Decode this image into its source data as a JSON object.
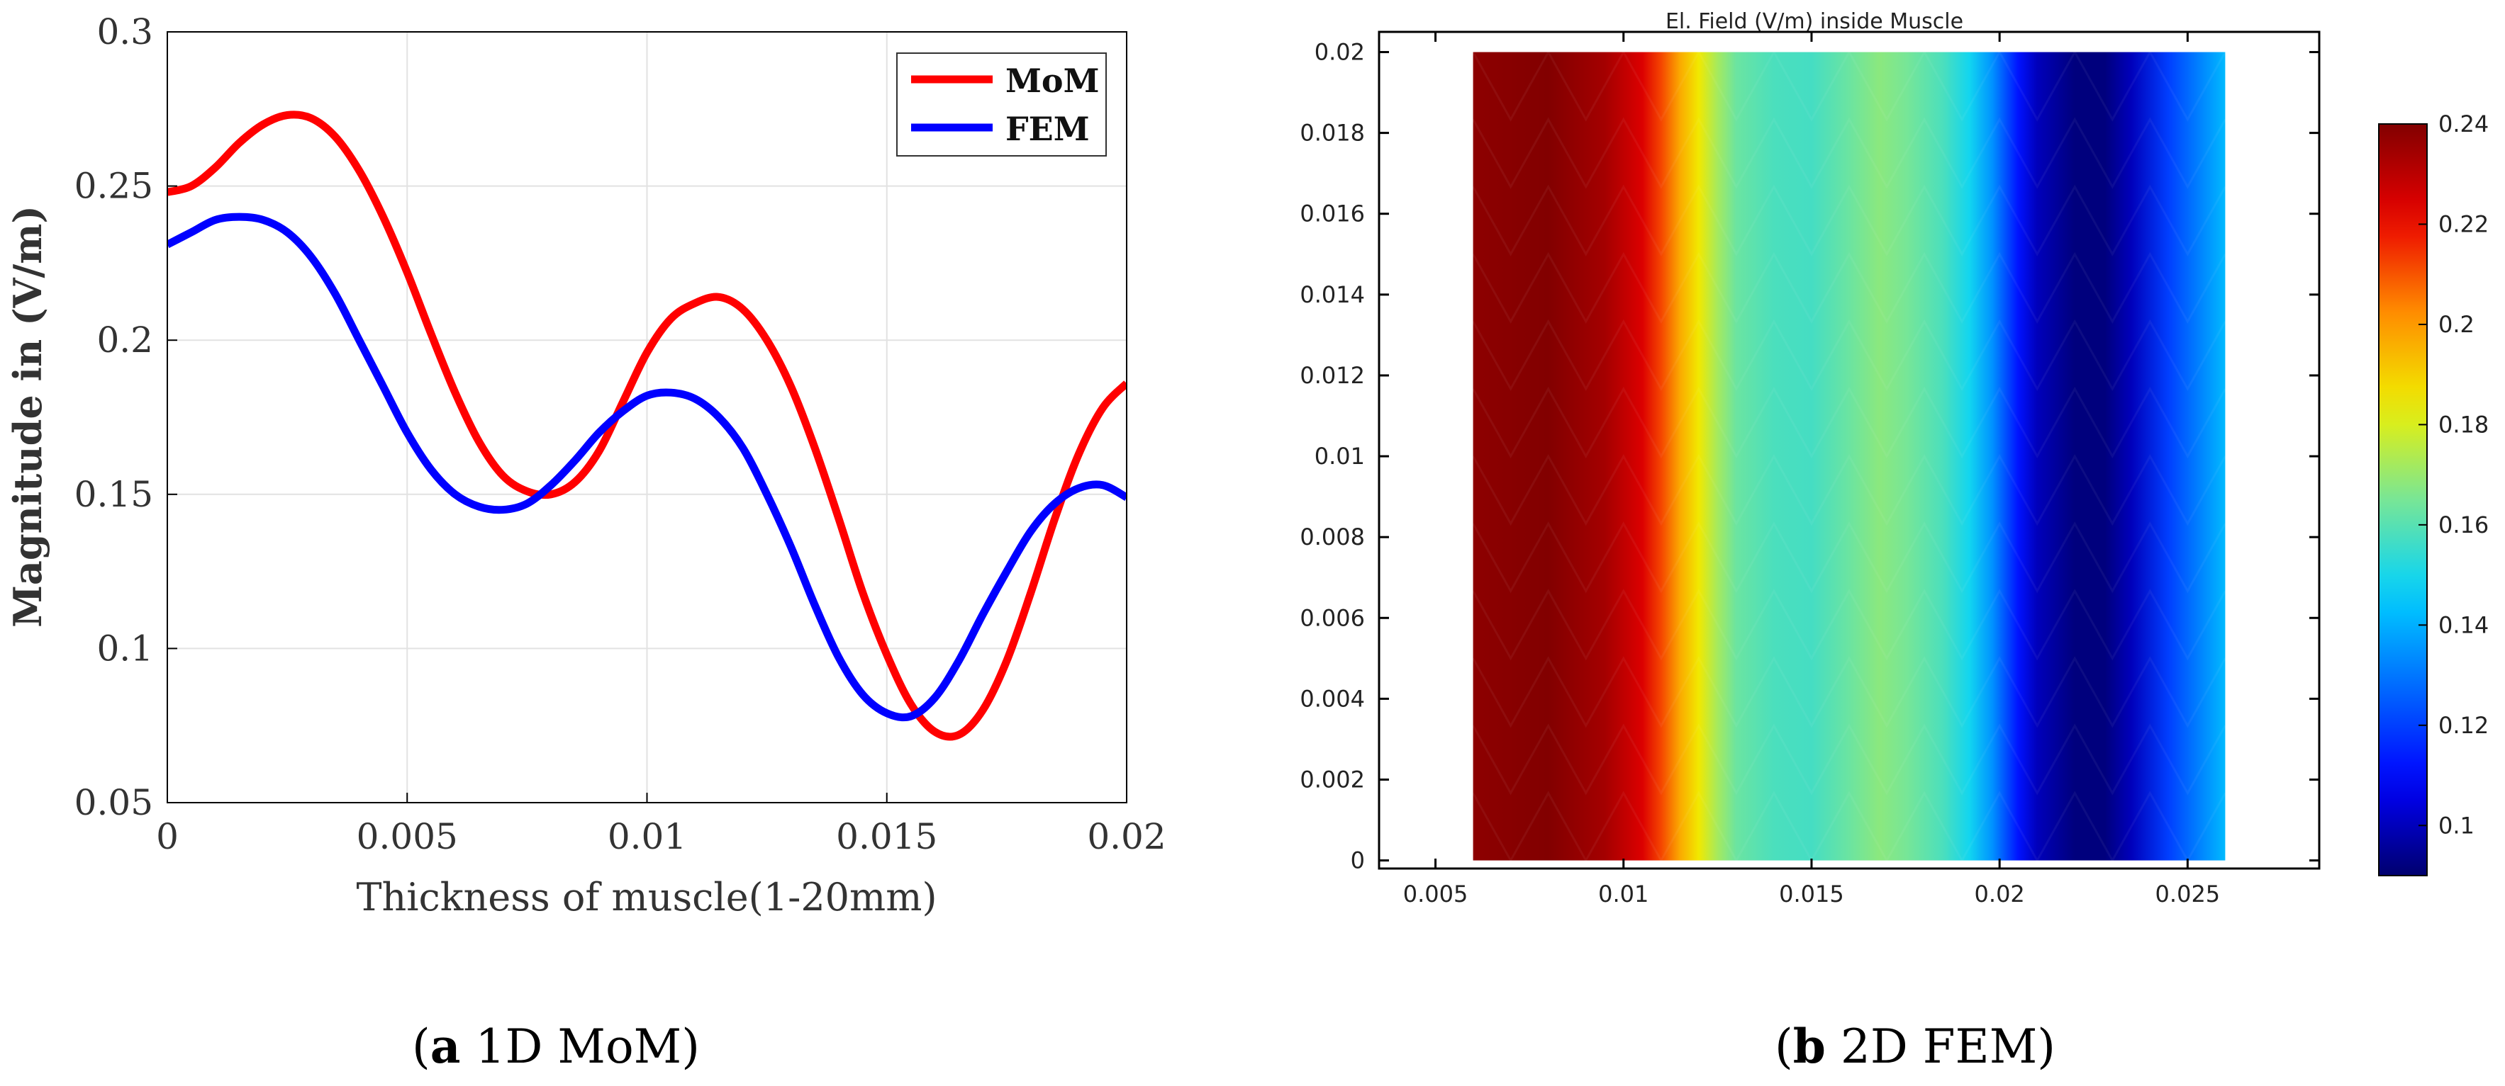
{
  "chart_data": [
    {
      "type": "line",
      "title": "",
      "xlabel": "Thickness of muscle(1-20mm)",
      "ylabel": "Magnitude in (V/m)",
      "xlim": [
        0,
        0.02
      ],
      "ylim": [
        0.05,
        0.3
      ],
      "xticks": [
        0,
        0.005,
        0.01,
        0.015,
        0.02
      ],
      "xtick_labels": [
        "0",
        "0.005",
        "0.01",
        "0.015",
        "0.02"
      ],
      "yticks": [
        0.05,
        0.1,
        0.15,
        0.2,
        0.25,
        0.3
      ],
      "ytick_labels": [
        "0.05",
        "0.1",
        "0.15",
        "0.2",
        "0.25",
        "0.3"
      ],
      "grid": true,
      "legend_position": "top-right",
      "series": [
        {
          "name": "MoM",
          "color": "#ff0000",
          "x": [
            0,
            0.0005,
            0.001,
            0.0015,
            0.002,
            0.0025,
            0.003,
            0.0035,
            0.004,
            0.0045,
            0.005,
            0.0055,
            0.006,
            0.0065,
            0.007,
            0.0075,
            0.008,
            0.0085,
            0.009,
            0.0095,
            0.01,
            0.0105,
            0.011,
            0.0115,
            0.012,
            0.0125,
            0.013,
            0.0135,
            0.014,
            0.0145,
            0.015,
            0.0155,
            0.016,
            0.0165,
            0.017,
            0.0175,
            0.018,
            0.0185,
            0.019,
            0.0195,
            0.02
          ],
          "values": [
            0.248,
            0.25,
            0.256,
            0.264,
            0.27,
            0.273,
            0.272,
            0.266,
            0.255,
            0.24,
            0.222,
            0.202,
            0.183,
            0.167,
            0.156,
            0.151,
            0.15,
            0.154,
            0.164,
            0.18,
            0.196,
            0.207,
            0.212,
            0.214,
            0.21,
            0.2,
            0.185,
            0.165,
            0.142,
            0.118,
            0.098,
            0.082,
            0.073,
            0.072,
            0.08,
            0.096,
            0.118,
            0.142,
            0.163,
            0.178,
            0.186
          ]
        },
        {
          "name": "FEM",
          "color": "#0000ff",
          "x": [
            0,
            0.0005,
            0.001,
            0.0015,
            0.002,
            0.0025,
            0.003,
            0.0035,
            0.004,
            0.0045,
            0.005,
            0.0055,
            0.006,
            0.0065,
            0.007,
            0.0075,
            0.008,
            0.0085,
            0.009,
            0.0095,
            0.01,
            0.0105,
            0.011,
            0.0115,
            0.012,
            0.0125,
            0.013,
            0.0135,
            0.014,
            0.0145,
            0.015,
            0.0155,
            0.016,
            0.0165,
            0.017,
            0.0175,
            0.018,
            0.0185,
            0.019,
            0.0195,
            0.02
          ],
          "values": [
            0.231,
            0.235,
            0.239,
            0.24,
            0.239,
            0.235,
            0.227,
            0.215,
            0.2,
            0.185,
            0.17,
            0.158,
            0.15,
            0.146,
            0.145,
            0.147,
            0.153,
            0.161,
            0.17,
            0.177,
            0.182,
            0.183,
            0.181,
            0.175,
            0.165,
            0.15,
            0.133,
            0.114,
            0.097,
            0.085,
            0.079,
            0.078,
            0.084,
            0.096,
            0.111,
            0.125,
            0.138,
            0.147,
            0.152,
            0.153,
            0.149
          ]
        }
      ]
    },
    {
      "type": "heatmap",
      "title": "El. Field (V/m) inside Muscle",
      "xlim": [
        0.0035,
        0.0285
      ],
      "ylim": [
        -0.0002,
        0.0205
      ],
      "field_x_range": [
        0.006,
        0.026
      ],
      "field_y_range": [
        0,
        0.02
      ],
      "xticks": [
        0.005,
        0.01,
        0.015,
        0.02,
        0.025
      ],
      "xtick_labels": [
        "0.005",
        "0.01",
        "0.015",
        "0.02",
        "0.025"
      ],
      "yticks": [
        0,
        0.002,
        0.004,
        0.006,
        0.008,
        0.01,
        0.012,
        0.014,
        0.016,
        0.018,
        0.02
      ],
      "ytick_labels": [
        "0",
        "0.002",
        "0.004",
        "0.006",
        "0.008",
        "0.01",
        "0.012",
        "0.014",
        "0.016",
        "0.018",
        "0.02"
      ],
      "profile_x": [
        0.006,
        0.008,
        0.0095,
        0.0105,
        0.011,
        0.0115,
        0.012,
        0.0125,
        0.013,
        0.014,
        0.015,
        0.016,
        0.0168,
        0.0175,
        0.0185,
        0.0192,
        0.0198,
        0.0205,
        0.021,
        0.022,
        0.0228,
        0.0235,
        0.0245,
        0.026
      ],
      "profile_values": [
        0.238,
        0.24,
        0.234,
        0.224,
        0.212,
        0.197,
        0.185,
        0.172,
        0.163,
        0.158,
        0.157,
        0.163,
        0.168,
        0.165,
        0.158,
        0.149,
        0.135,
        0.112,
        0.1,
        0.092,
        0.092,
        0.1,
        0.12,
        0.142
      ],
      "colorbar": {
        "min": 0.09,
        "max": 0.24,
        "ticks": [
          0.1,
          0.12,
          0.14,
          0.16,
          0.18,
          0.2,
          0.22,
          0.24
        ],
        "tick_labels": [
          "0.1",
          "0.12",
          "0.14",
          "0.16",
          "0.18",
          "0.2",
          "0.22",
          "0.24"
        ]
      }
    }
  ],
  "captions": {
    "a": {
      "bold": "a",
      "rest": " 1D MoM"
    },
    "b": {
      "bold": "b",
      "rest": " 2D FEM"
    }
  }
}
